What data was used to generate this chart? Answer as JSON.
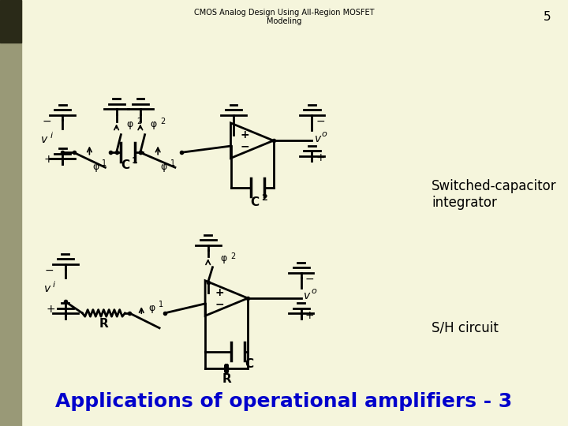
{
  "title": "Applications of operational amplifiers - 3",
  "title_color": "#0000CC",
  "title_fontsize": 18,
  "bg_color": "#F5F5DC",
  "left_bar_color": "#999977",
  "left_bar_dark": "#2a2a18",
  "footer_text": "CMOS Analog Design Using All-Region MOSFET\nModeling",
  "footer_page": "5",
  "sh_label": "S/H circuit",
  "sc_label": "Switched-capacitor\nintegrator",
  "lw": 2.0
}
